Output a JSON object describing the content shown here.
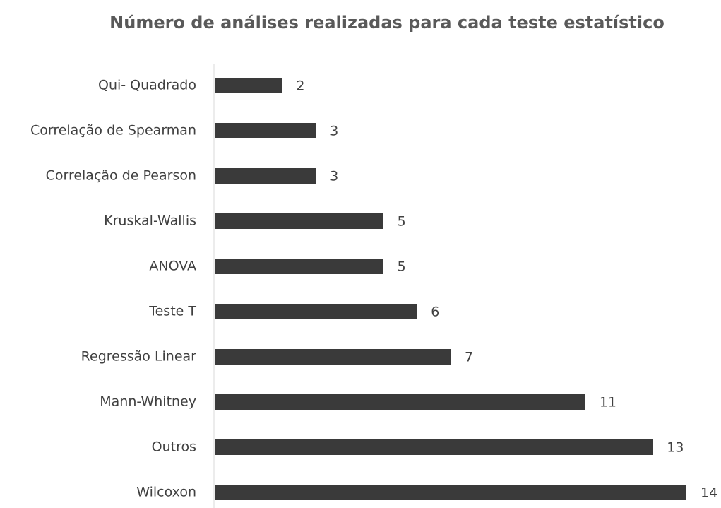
{
  "chart_data": {
    "type": "bar",
    "orientation": "horizontal",
    "title": "Número de análises realizadas para cada teste estatístico",
    "categories": [
      "Qui- Quadrado",
      "Correlação de Spearman",
      "Correlação de Pearson",
      "Kruskal-Wallis",
      "ANOVA",
      "Teste T",
      "Regressão Linear",
      "Mann-Whitney",
      "Outros",
      "Wilcoxon"
    ],
    "values": [
      2,
      3,
      3,
      5,
      5,
      6,
      7,
      11,
      13,
      14
    ],
    "color": "#3a3a3a"
  }
}
